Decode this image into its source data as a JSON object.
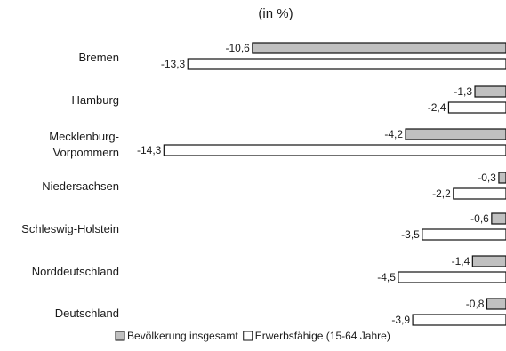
{
  "chart_data": {
    "type": "bar",
    "orientation": "horizontal",
    "title": "(in %)",
    "categories": [
      "Bremen",
      "Hamburg",
      "Mecklenburg-\nVorpommern",
      "Niedersachsen",
      "Schleswig-Holstein",
      "Norddeutschland",
      "Deutschland"
    ],
    "series": [
      {
        "name": "Bevölkerung insgesamt",
        "values": [
          -10.6,
          -1.3,
          -4.2,
          -0.3,
          -0.6,
          -1.4,
          -0.8
        ],
        "labels": [
          "-10,6",
          "-1,3",
          "-4,2",
          "-0,3",
          "-0,6",
          "-1,4",
          "-0,8"
        ],
        "color": "#c0c0c0"
      },
      {
        "name": "Erwerbsfähige (15-64 Jahre)",
        "values": [
          -13.3,
          -2.4,
          -14.3,
          -2.2,
          -3.5,
          -4.5,
          -3.9
        ],
        "labels": [
          "-13,3",
          "-2,4",
          "-14,3",
          "-2,2",
          "-3,5",
          "-4,5",
          "-3,9"
        ],
        "color": "#ffffff"
      }
    ],
    "xlim": [
      -15,
      0
    ],
    "grid": false,
    "legend": "bottom"
  }
}
